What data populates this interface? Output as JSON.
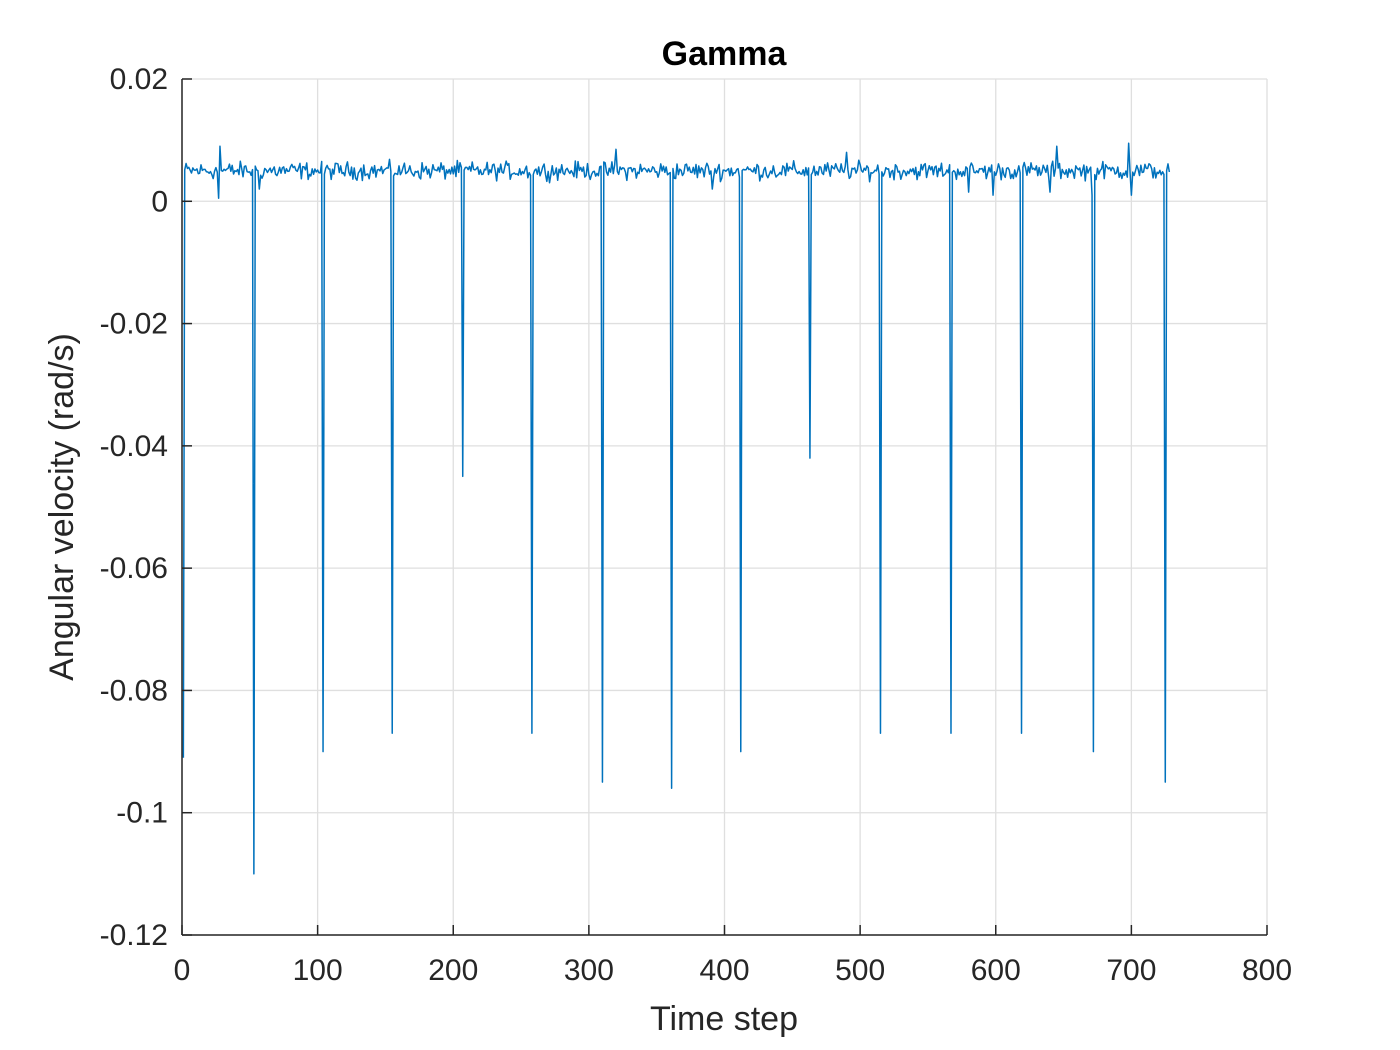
{
  "chart_data": {
    "type": "line",
    "title": "Gamma",
    "xlabel": "Time step",
    "ylabel": "Angular velocity (rad/s)",
    "xlim": [
      0,
      800
    ],
    "ylim": [
      -0.12,
      0.02
    ],
    "xticks": [
      0,
      100,
      200,
      300,
      400,
      500,
      600,
      700,
      800
    ],
    "yticks": [
      -0.12,
      -0.1,
      -0.08,
      -0.06,
      -0.04,
      -0.02,
      0,
      0.02
    ],
    "xtick_labels": [
      "0",
      "100",
      "200",
      "300",
      "400",
      "500",
      "600",
      "700",
      "800"
    ],
    "ytick_labels": [
      "-0.12",
      "-0.1",
      "-0.08",
      "-0.06",
      "-0.04",
      "-0.02",
      "0",
      "0.02"
    ],
    "grid": true,
    "line_color": "#0072BD",
    "series": [
      {
        "x_start": 1,
        "x_end": 728,
        "baseline": 0.005,
        "noise_amplitude": 0.0013,
        "spikes": [
          {
            "x": 1,
            "y": -0.091
          },
          {
            "x": 53,
            "y": -0.11
          },
          {
            "x": 104,
            "y": -0.09
          },
          {
            "x": 155,
            "y": -0.087
          },
          {
            "x": 207,
            "y": -0.045
          },
          {
            "x": 258,
            "y": -0.087
          },
          {
            "x": 310,
            "y": -0.095
          },
          {
            "x": 361,
            "y": -0.096
          },
          {
            "x": 412,
            "y": -0.09
          },
          {
            "x": 463,
            "y": -0.042
          },
          {
            "x": 515,
            "y": -0.087
          },
          {
            "x": 567,
            "y": -0.087
          },
          {
            "x": 619,
            "y": -0.087
          },
          {
            "x": 672,
            "y": -0.09
          },
          {
            "x": 725,
            "y": -0.095
          }
        ],
        "small_dips": [
          {
            "x": 27,
            "y": 0.0005
          },
          {
            "x": 57,
            "y": 0.002
          },
          {
            "x": 391,
            "y": 0.002
          },
          {
            "x": 580,
            "y": 0.0015
          },
          {
            "x": 598,
            "y": 0.001
          },
          {
            "x": 640,
            "y": 0.0015
          },
          {
            "x": 671,
            "y": 0.001
          },
          {
            "x": 700,
            "y": 0.001
          }
        ],
        "peaks": [
          {
            "x": 28,
            "y": 0.009
          },
          {
            "x": 104,
            "y": 0.009
          },
          {
            "x": 320,
            "y": 0.0085
          },
          {
            "x": 490,
            "y": 0.008
          },
          {
            "x": 645,
            "y": 0.009
          },
          {
            "x": 698,
            "y": 0.0095
          }
        ]
      }
    ]
  }
}
